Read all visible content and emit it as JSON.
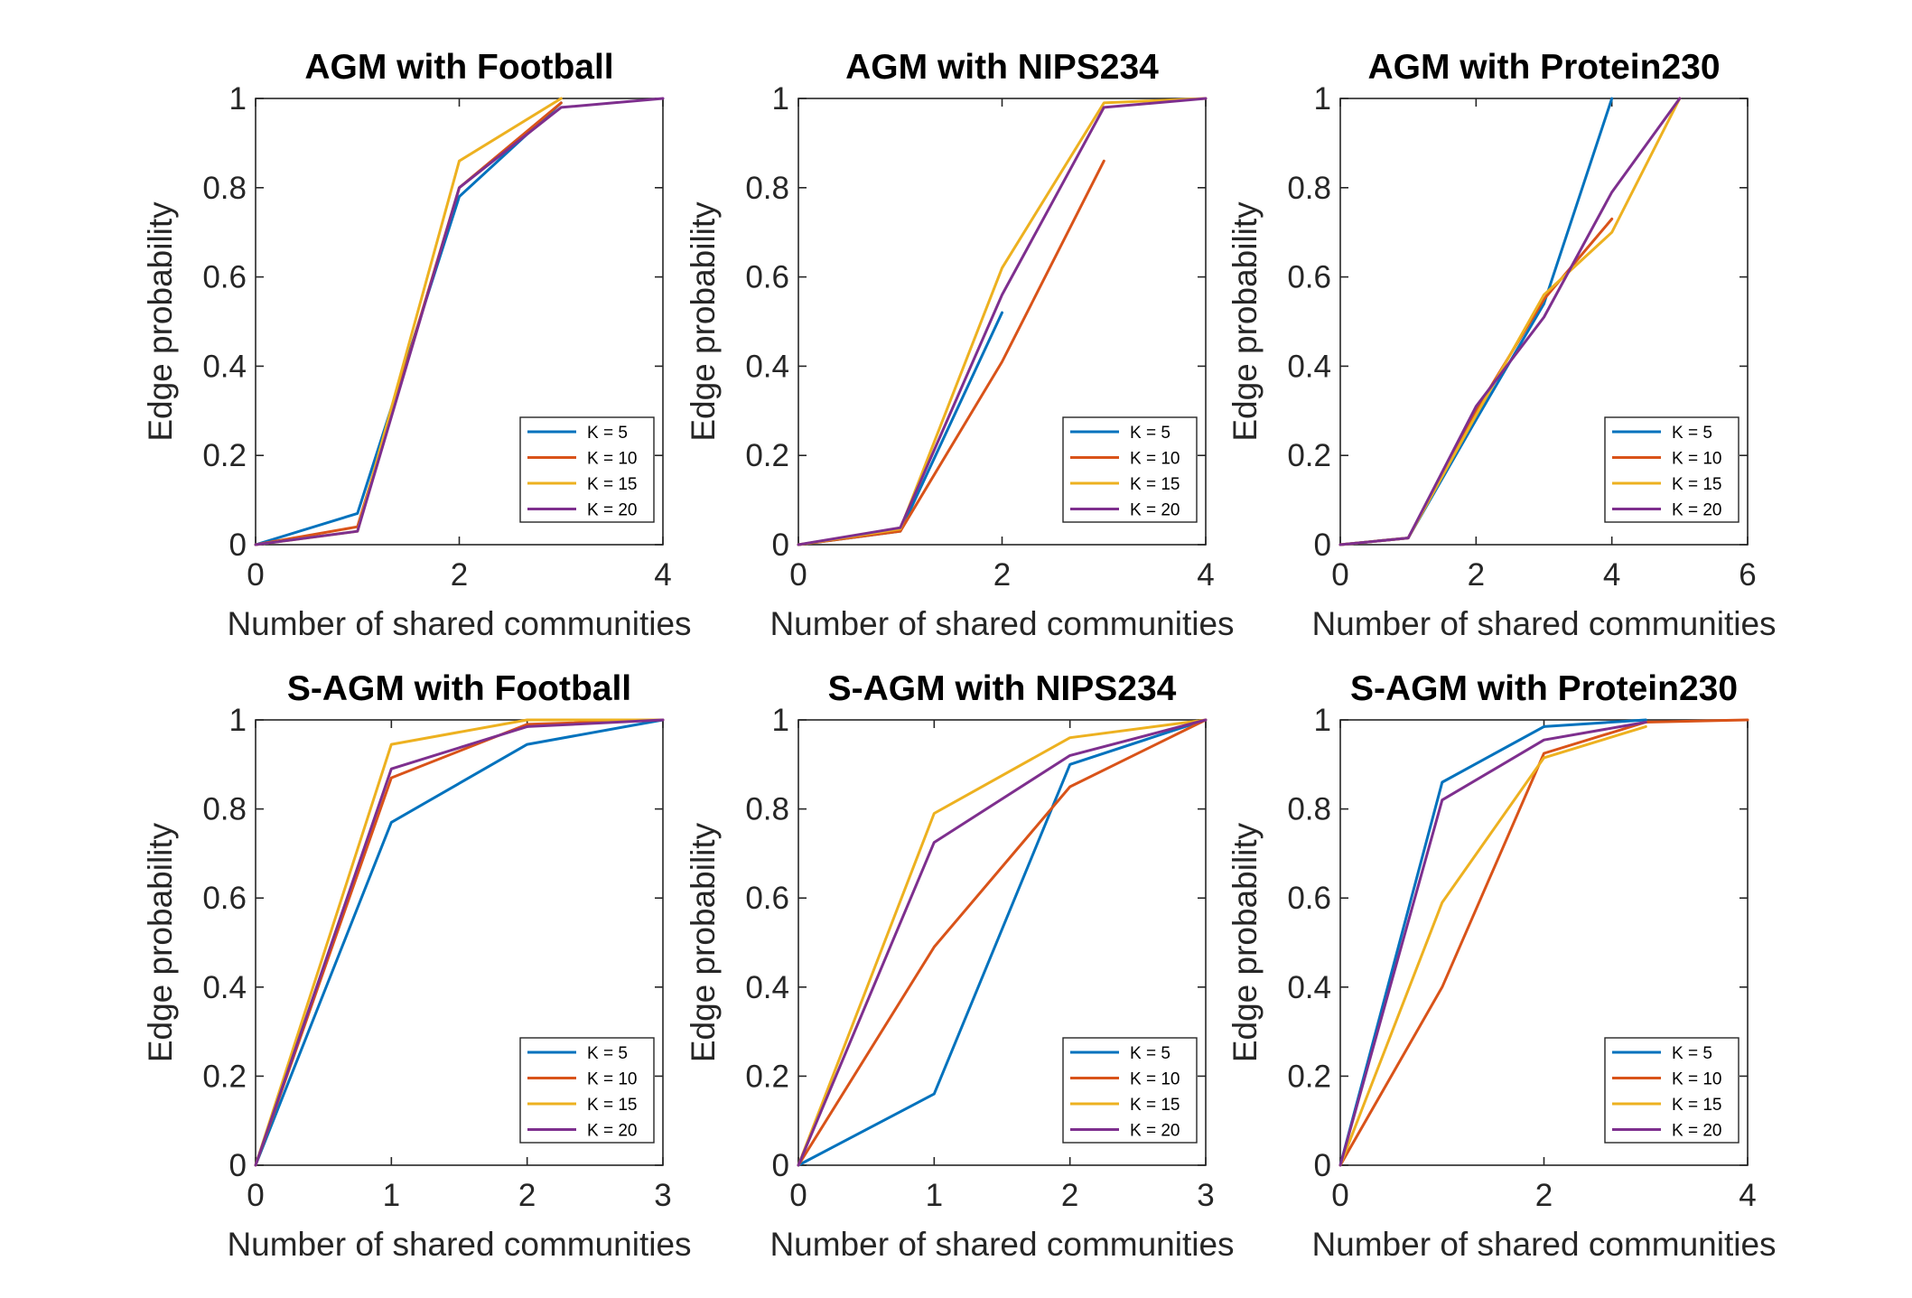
{
  "chart_data": [
    {
      "type": "line",
      "title": "AGM with Football",
      "xlabel": "Number of shared communities",
      "ylabel": "Edge probability",
      "xlim": [
        0,
        4
      ],
      "ylim": [
        0,
        1
      ],
      "xticks": [
        0,
        2,
        4
      ],
      "yticks": [
        0,
        0.2,
        0.4,
        0.6,
        0.8,
        1
      ],
      "legend_position": "bottom-right",
      "series": [
        {
          "name": "K = 5",
          "color": "#0072BD",
          "x": [
            0,
            1,
            2,
            3
          ],
          "values": [
            0,
            0.07,
            0.78,
            0.99
          ]
        },
        {
          "name": "K = 10",
          "color": "#D95319",
          "x": [
            0,
            1,
            2,
            3
          ],
          "values": [
            0,
            0.04,
            0.8,
            0.99
          ]
        },
        {
          "name": "K = 15",
          "color": "#EDB120",
          "x": [
            0,
            1,
            2,
            3
          ],
          "values": [
            0,
            0.03,
            0.86,
            1.0
          ]
        },
        {
          "name": "K = 20",
          "color": "#7E2F8E",
          "x": [
            0,
            1,
            2,
            3,
            4
          ],
          "values": [
            0,
            0.03,
            0.8,
            0.98,
            1.0
          ]
        }
      ]
    },
    {
      "type": "line",
      "title": "AGM with NIPS234",
      "xlabel": "Number of shared communities",
      "ylabel": "Edge probability",
      "xlim": [
        0,
        4
      ],
      "ylim": [
        0,
        1
      ],
      "xticks": [
        0,
        2,
        4
      ],
      "yticks": [
        0,
        0.2,
        0.4,
        0.6,
        0.8,
        1
      ],
      "legend_position": "bottom-right",
      "series": [
        {
          "name": "K = 5",
          "color": "#0072BD",
          "x": [
            0,
            1,
            2
          ],
          "values": [
            0,
            0.03,
            0.52
          ]
        },
        {
          "name": "K = 10",
          "color": "#D95319",
          "x": [
            0,
            1,
            2,
            3
          ],
          "values": [
            0,
            0.03,
            0.41,
            0.86
          ]
        },
        {
          "name": "K = 15",
          "color": "#EDB120",
          "x": [
            0,
            1,
            2,
            3,
            4
          ],
          "values": [
            0,
            0.035,
            0.62,
            0.99,
            1.0
          ]
        },
        {
          "name": "K = 20",
          "color": "#7E2F8E",
          "x": [
            0,
            1,
            2,
            3,
            4
          ],
          "values": [
            0,
            0.038,
            0.56,
            0.98,
            1.0
          ]
        }
      ]
    },
    {
      "type": "line",
      "title": "AGM with Protein230",
      "xlabel": "Number of shared communities",
      "ylabel": "Edge probability",
      "xlim": [
        0,
        6
      ],
      "ylim": [
        0,
        1
      ],
      "xticks": [
        0,
        2,
        4,
        6
      ],
      "yticks": [
        0,
        0.2,
        0.4,
        0.6,
        0.8,
        1
      ],
      "legend_position": "bottom-right",
      "series": [
        {
          "name": "K = 5",
          "color": "#0072BD",
          "x": [
            0,
            1,
            2,
            3,
            4
          ],
          "values": [
            0,
            0.015,
            0.28,
            0.54,
            1.0
          ]
        },
        {
          "name": "K = 10",
          "color": "#D95319",
          "x": [
            0,
            1,
            2,
            3,
            4
          ],
          "values": [
            0,
            0.015,
            0.3,
            0.55,
            0.73
          ]
        },
        {
          "name": "K = 15",
          "color": "#EDB120",
          "x": [
            0,
            1,
            2,
            3,
            4,
            5
          ],
          "values": [
            0,
            0.015,
            0.29,
            0.56,
            0.7,
            1.0
          ]
        },
        {
          "name": "K = 20",
          "color": "#7E2F8E",
          "x": [
            0,
            1,
            2,
            3,
            4,
            5
          ],
          "values": [
            0,
            0.015,
            0.31,
            0.51,
            0.79,
            1.0
          ]
        }
      ]
    },
    {
      "type": "line",
      "title": "S-AGM with Football",
      "xlabel": "Number of shared communities",
      "ylabel": "Edge probability",
      "xlim": [
        0,
        3
      ],
      "ylim": [
        0,
        1
      ],
      "xticks": [
        0,
        1,
        2,
        3
      ],
      "yticks": [
        0,
        0.2,
        0.4,
        0.6,
        0.8,
        1
      ],
      "legend_position": "bottom-right",
      "series": [
        {
          "name": "K = 5",
          "color": "#0072BD",
          "x": [
            0,
            1,
            2,
            3
          ],
          "values": [
            0,
            0.77,
            0.945,
            1.0
          ]
        },
        {
          "name": "K = 10",
          "color": "#D95319",
          "x": [
            0,
            1,
            2,
            3
          ],
          "values": [
            0,
            0.87,
            0.99,
            1.0
          ]
        },
        {
          "name": "K = 15",
          "color": "#EDB120",
          "x": [
            0,
            1,
            2,
            3
          ],
          "values": [
            0,
            0.945,
            1.0,
            1.0
          ]
        },
        {
          "name": "K = 20",
          "color": "#7E2F8E",
          "x": [
            0,
            1,
            2,
            3
          ],
          "values": [
            0,
            0.89,
            0.985,
            1.0
          ]
        }
      ]
    },
    {
      "type": "line",
      "title": "S-AGM with NIPS234",
      "xlabel": "Number of shared communities",
      "ylabel": "Edge probability",
      "xlim": [
        0,
        3
      ],
      "ylim": [
        0,
        1
      ],
      "xticks": [
        0,
        1,
        2,
        3
      ],
      "yticks": [
        0,
        0.2,
        0.4,
        0.6,
        0.8,
        1
      ],
      "legend_position": "bottom-right",
      "series": [
        {
          "name": "K = 5",
          "color": "#0072BD",
          "x": [
            0,
            1,
            2,
            3
          ],
          "values": [
            0,
            0.16,
            0.9,
            1.0
          ]
        },
        {
          "name": "K = 10",
          "color": "#D95319",
          "x": [
            0,
            1,
            2,
            3
          ],
          "values": [
            0,
            0.49,
            0.85,
            1.0
          ]
        },
        {
          "name": "K = 15",
          "color": "#EDB120",
          "x": [
            0,
            1,
            2,
            3
          ],
          "values": [
            0,
            0.79,
            0.96,
            1.0
          ]
        },
        {
          "name": "K = 20",
          "color": "#7E2F8E",
          "x": [
            0,
            1,
            2,
            3
          ],
          "values": [
            0,
            0.725,
            0.92,
            1.0
          ]
        }
      ]
    },
    {
      "type": "line",
      "title": "S-AGM with Protein230",
      "xlabel": "Number of shared communities",
      "ylabel": "Edge probability",
      "xlim": [
        0,
        4
      ],
      "ylim": [
        0,
        1
      ],
      "xticks": [
        0,
        2,
        4
      ],
      "yticks": [
        0,
        0.2,
        0.4,
        0.6,
        0.8,
        1
      ],
      "legend_position": "bottom-right",
      "series": [
        {
          "name": "K = 5",
          "color": "#0072BD",
          "x": [
            0,
            1,
            2,
            3
          ],
          "values": [
            0,
            0.86,
            0.985,
            1.0
          ]
        },
        {
          "name": "K = 10",
          "color": "#D95319",
          "x": [
            0,
            1,
            2,
            3,
            4
          ],
          "values": [
            0,
            0.4,
            0.925,
            0.995,
            1.0
          ]
        },
        {
          "name": "K = 15",
          "color": "#EDB120",
          "x": [
            0,
            1,
            2,
            3
          ],
          "values": [
            0,
            0.59,
            0.915,
            0.985
          ]
        },
        {
          "name": "K = 20",
          "color": "#7E2F8E",
          "x": [
            0,
            1,
            2,
            3
          ],
          "values": [
            0,
            0.82,
            0.955,
            0.995
          ]
        }
      ]
    }
  ]
}
